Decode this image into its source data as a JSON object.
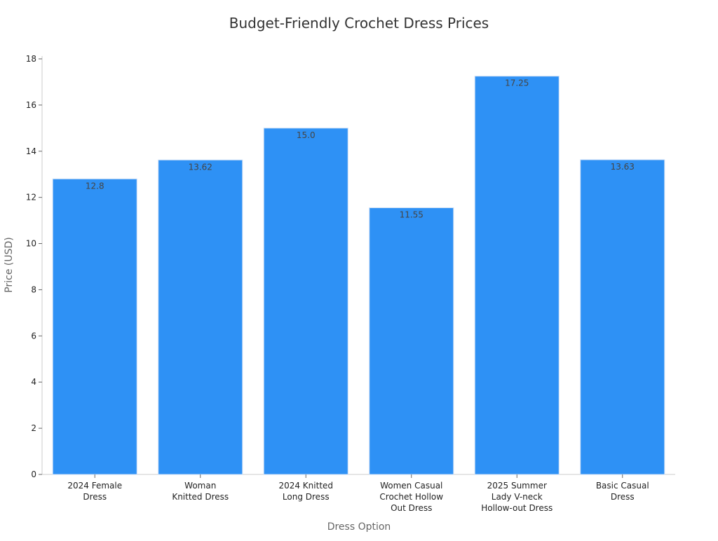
{
  "chart_data": {
    "type": "bar",
    "title": "Budget-Friendly Crochet Dress Prices",
    "xlabel": "Dress Option",
    "ylabel": "Price (USD)",
    "categories": [
      [
        "2024 Female",
        "Dress"
      ],
      [
        "Woman",
        "Knitted Dress"
      ],
      [
        "2024 Knitted",
        "Long Dress"
      ],
      [
        "Women Casual",
        "Crochet Hollow",
        "Out Dress"
      ],
      [
        "2025 Summer",
        "Lady V-neck",
        "Hollow-out Dress"
      ],
      [
        "Basic Casual",
        "Dress"
      ]
    ],
    "values": [
      12.8,
      13.62,
      15.0,
      11.55,
      17.25,
      13.63
    ],
    "value_labels": [
      "12.8",
      "13.62",
      "15.0",
      "11.55",
      "17.25",
      "13.63"
    ],
    "ylim": [
      0,
      18
    ],
    "yticks": [
      0,
      2,
      4,
      6,
      8,
      10,
      12,
      14,
      16,
      18
    ],
    "grid": false,
    "bar_color": "#2e91f5",
    "bar_edge_color": "#c8dcf5"
  }
}
